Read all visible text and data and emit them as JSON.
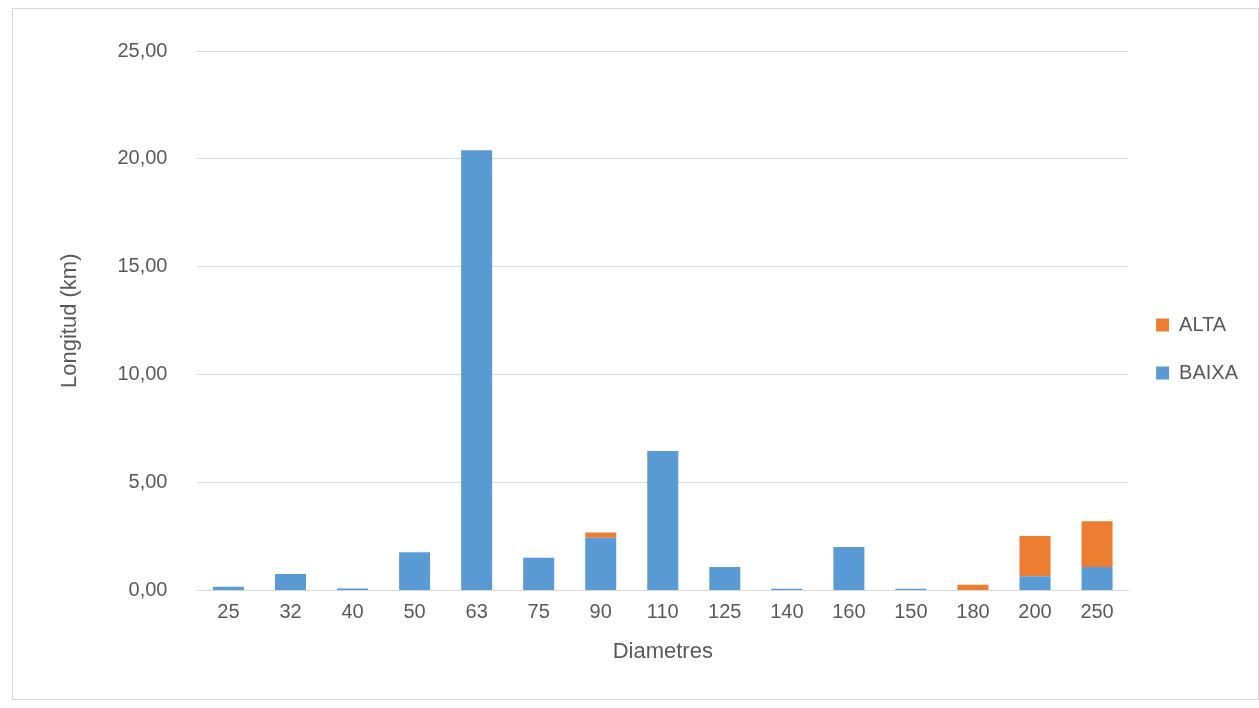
{
  "chart_data": {
    "type": "bar",
    "xlabel": "Diametres",
    "ylabel": "Longitud (km)",
    "categories": [
      "25",
      "32",
      "40",
      "50",
      "63",
      "75",
      "90",
      "110",
      "125",
      "140",
      "160",
      "150",
      "180",
      "200",
      "250"
    ],
    "stacked": true,
    "series": [
      {
        "name": "BAIXA",
        "color": "#5b9bd5",
        "values": [
          0.18,
          0.77,
          0.1,
          1.78,
          20.4,
          1.52,
          2.45,
          6.47,
          1.09,
          0.08,
          2.02,
          0.08,
          0,
          0.66,
          1.09
        ]
      },
      {
        "name": "ALTA",
        "color": "#ed7d31",
        "values": [
          0,
          0,
          0,
          0,
          0,
          0,
          0.24,
          0,
          0,
          0,
          0,
          0,
          0.27,
          1.87,
          2.12
        ]
      }
    ],
    "ylim": [
      0,
      25
    ],
    "yticks": [
      {
        "value": 0,
        "label": "0,00"
      },
      {
        "value": 5,
        "label": "5,00"
      },
      {
        "value": 10,
        "label": "10,00"
      },
      {
        "value": 15,
        "label": "15,00"
      },
      {
        "value": 20,
        "label": "20,00"
      },
      {
        "value": 25,
        "label": "25,00"
      }
    ],
    "grid": "y",
    "legend": "right"
  }
}
